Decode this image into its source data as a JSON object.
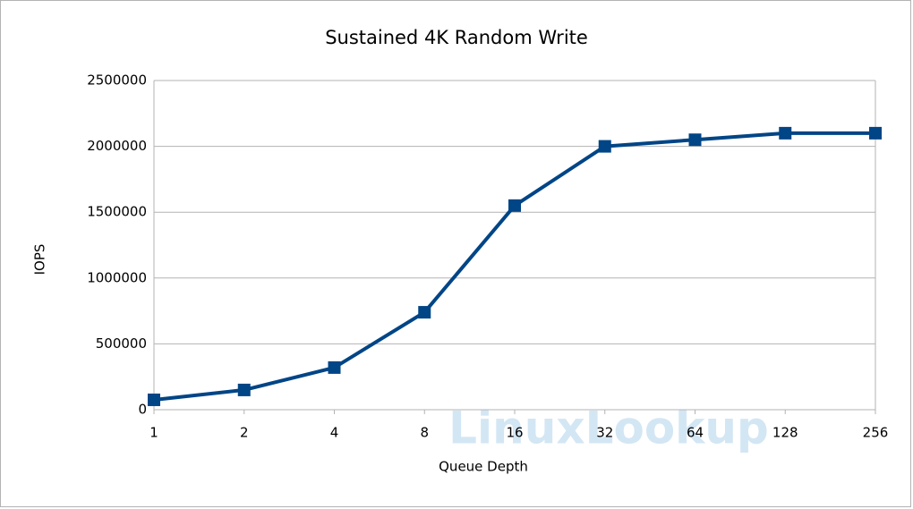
{
  "chart_data": {
    "type": "line",
    "title": "Sustained 4K Random Write",
    "x_label": "Queue Depth",
    "y_label": "IOPS",
    "categories": [
      "1",
      "2",
      "4",
      "8",
      "16",
      "32",
      "64",
      "128",
      "256"
    ],
    "series": [
      {
        "name": "IOPS",
        "color": "#004586",
        "values": [
          75000,
          150000,
          320000,
          740000,
          1550000,
          2000000,
          2050000,
          2100000,
          2100000
        ]
      }
    ],
    "ylim": [
      0,
      2500000
    ],
    "yticks": [
      0,
      500000,
      1000000,
      1500000,
      2000000,
      2500000
    ],
    "grid": true,
    "watermark": "LinuxLookup"
  }
}
